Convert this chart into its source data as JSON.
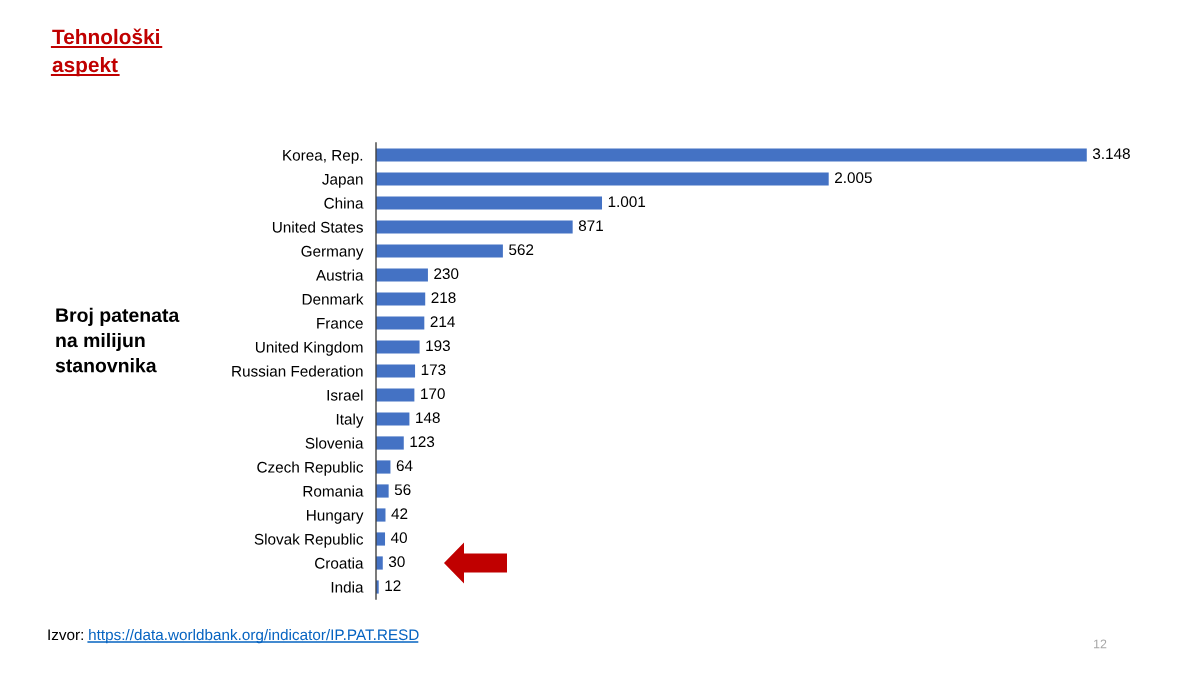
{
  "chart_data": {
    "type": "bar",
    "orientation": "horizontal",
    "title": "Tehnološki\naspekt",
    "ylabel": "Broj patenata\nna milijun\nstanovnika",
    "categories": [
      "Korea, Rep.",
      "Japan",
      "China",
      "United States",
      "Germany",
      "Austria",
      "Denmark",
      "France",
      "United Kingdom",
      "Russian Federation",
      "Israel",
      "Italy",
      "Slovenia",
      "Czech Republic",
      "Romania",
      "Hungary",
      "Slovak Republic",
      "Croatia",
      "India"
    ],
    "values": [
      3148,
      2005,
      1001,
      871,
      562,
      230,
      218,
      214,
      193,
      173,
      170,
      148,
      123,
      64,
      56,
      42,
      40,
      30,
      12
    ],
    "value_labels": [
      "3.148",
      "2.005",
      "1.001",
      "871",
      "562",
      "230",
      "218",
      "214",
      "193",
      "173",
      "170",
      "148",
      "123",
      "64",
      "56",
      "42",
      "40",
      "30",
      "12"
    ],
    "color": "#4472c4",
    "tick_labels": "y",
    "annotations": [
      "Izvor:",
      "https://data.worldbank.org/indicator/IP.PAT.RESD",
      "12"
    ]
  }
}
